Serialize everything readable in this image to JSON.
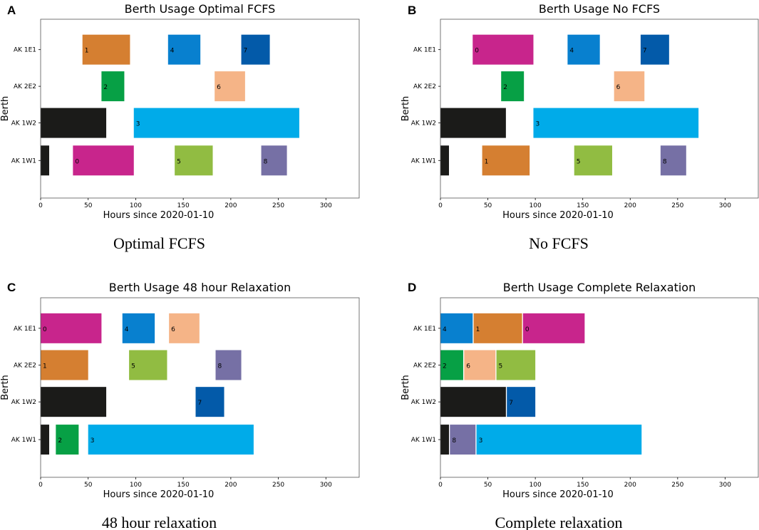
{
  "figure": {
    "xlabel": "Hours since 2020-01-10",
    "ylabel": "Berth"
  },
  "colors": {
    "0": "#c8258c",
    "1": "#d57f31",
    "2": "#07a045",
    "3": "#00abe9",
    "4": "#0880cf",
    "5": "#91bc42",
    "6": "#f5b487",
    "7": "#035aa9",
    "8": "#7670a5",
    "idle": "#1b1b19"
  },
  "chart_data": [
    {
      "type": "gantt",
      "letter": "A",
      "title": "Berth Usage Optimal FCFS",
      "caption": "Optimal FCFS",
      "xlabel": "Hours since 2020-01-10",
      "ylabel": "Berth",
      "xlim": [
        0,
        335
      ],
      "xticks": [
        "0",
        "50",
        "100",
        "150",
        "200",
        "250",
        "300"
      ],
      "berths": [
        "AK 1E1",
        "AK 2E2",
        "AK 1W2",
        "AK 1W1"
      ],
      "bars": [
        {
          "berth": "AK 1E1",
          "label": "1",
          "start": 44,
          "end": 94
        },
        {
          "berth": "AK 1E1",
          "label": "4",
          "start": 134,
          "end": 168
        },
        {
          "berth": "AK 1E1",
          "label": "7",
          "start": 211,
          "end": 241
        },
        {
          "berth": "AK 2E2",
          "label": "2",
          "start": 64,
          "end": 88
        },
        {
          "berth": "AK 2E2",
          "label": "6",
          "start": 183,
          "end": 215
        },
        {
          "berth": "AK 1W2",
          "label": "",
          "start": 0,
          "end": 69
        },
        {
          "berth": "AK 1W2",
          "label": "3",
          "start": 98,
          "end": 272
        },
        {
          "berth": "AK 1W1",
          "label": "",
          "start": 0,
          "end": 9
        },
        {
          "berth": "AK 1W1",
          "label": "0",
          "start": 34,
          "end": 98
        },
        {
          "berth": "AK 1W1",
          "label": "5",
          "start": 141,
          "end": 181
        },
        {
          "berth": "AK 1W1",
          "label": "8",
          "start": 232,
          "end": 259
        }
      ]
    },
    {
      "type": "gantt",
      "letter": "B",
      "title": "Berth Usage No FCFS",
      "caption": "No FCFS",
      "xlabel": "Hours since 2020-01-10",
      "ylabel": "Berth",
      "xlim": [
        0,
        335
      ],
      "xticks": [
        "0",
        "50",
        "100",
        "150",
        "200",
        "250",
        "300"
      ],
      "berths": [
        "AK 1E1",
        "AK 2E2",
        "AK 1W2",
        "AK 1W1"
      ],
      "bars": [
        {
          "berth": "AK 1E1",
          "label": "0",
          "start": 34,
          "end": 98
        },
        {
          "berth": "AK 1E1",
          "label": "4",
          "start": 134,
          "end": 168
        },
        {
          "berth": "AK 1E1",
          "label": "7",
          "start": 211,
          "end": 241
        },
        {
          "berth": "AK 2E2",
          "label": "2",
          "start": 64,
          "end": 88
        },
        {
          "berth": "AK 2E2",
          "label": "6",
          "start": 183,
          "end": 215
        },
        {
          "berth": "AK 1W2",
          "label": "",
          "start": 0,
          "end": 69
        },
        {
          "berth": "AK 1W2",
          "label": "3",
          "start": 98,
          "end": 272
        },
        {
          "berth": "AK 1W1",
          "label": "",
          "start": 0,
          "end": 9
        },
        {
          "berth": "AK 1W1",
          "label": "1",
          "start": 44,
          "end": 94
        },
        {
          "berth": "AK 1W1",
          "label": "5",
          "start": 141,
          "end": 181
        },
        {
          "berth": "AK 1W1",
          "label": "8",
          "start": 232,
          "end": 259
        }
      ]
    },
    {
      "type": "gantt",
      "letter": "C",
      "title": "Berth Usage 48 hour Relaxation",
      "caption": "48 hour relaxation",
      "xlabel": "Hours since 2020-01-10",
      "ylabel": "Berth",
      "xlim": [
        0,
        335
      ],
      "xticks": [
        "0",
        "50",
        "100",
        "150",
        "200",
        "250",
        "300"
      ],
      "berths": [
        "AK 1E1",
        "AK 2E2",
        "AK 1W2",
        "AK 1W1"
      ],
      "bars": [
        {
          "berth": "AK 1E1",
          "label": "0",
          "start": 0,
          "end": 64
        },
        {
          "berth": "AK 1E1",
          "label": "4",
          "start": 86,
          "end": 120
        },
        {
          "berth": "AK 1E1",
          "label": "6",
          "start": 135,
          "end": 167
        },
        {
          "berth": "AK 2E2",
          "label": "1",
          "start": 0,
          "end": 50
        },
        {
          "berth": "AK 2E2",
          "label": "5",
          "start": 93,
          "end": 133
        },
        {
          "berth": "AK 2E2",
          "label": "8",
          "start": 184,
          "end": 211
        },
        {
          "berth": "AK 1W2",
          "label": "",
          "start": 0,
          "end": 69
        },
        {
          "berth": "AK 1W2",
          "label": "7",
          "start": 163,
          "end": 193
        },
        {
          "berth": "AK 1W1",
          "label": "",
          "start": 0,
          "end": 9
        },
        {
          "berth": "AK 1W1",
          "label": "2",
          "start": 16,
          "end": 40
        },
        {
          "berth": "AK 1W1",
          "label": "3",
          "start": 50,
          "end": 224
        }
      ]
    },
    {
      "type": "gantt",
      "letter": "D",
      "title": "Berth Usage Complete Relaxation",
      "caption": "Complete relaxation",
      "xlabel": "Hours since 2020-01-10",
      "ylabel": "Berth",
      "xlim": [
        0,
        335
      ],
      "xticks": [
        "0",
        "50",
        "100",
        "150",
        "200",
        "250",
        "300"
      ],
      "berths": [
        "AK 1E1",
        "AK 2E2",
        "AK 1W2",
        "AK 1W1"
      ],
      "bars": [
        {
          "berth": "AK 1E1",
          "label": "4",
          "start": 0,
          "end": 34
        },
        {
          "berth": "AK 1E1",
          "label": "1",
          "start": 35,
          "end": 86
        },
        {
          "berth": "AK 1E1",
          "label": "0",
          "start": 87,
          "end": 152
        },
        {
          "berth": "AK 2E2",
          "label": "2",
          "start": 0,
          "end": 24
        },
        {
          "berth": "AK 2E2",
          "label": "6",
          "start": 25,
          "end": 58
        },
        {
          "berth": "AK 2E2",
          "label": "5",
          "start": 59,
          "end": 100
        },
        {
          "berth": "AK 1W2",
          "label": "",
          "start": 0,
          "end": 69
        },
        {
          "berth": "AK 1W2",
          "label": "7",
          "start": 70,
          "end": 100
        },
        {
          "berth": "AK 1W1",
          "label": "",
          "start": 0,
          "end": 9
        },
        {
          "berth": "AK 1W1",
          "label": "8",
          "start": 10,
          "end": 37
        },
        {
          "berth": "AK 1W1",
          "label": "3",
          "start": 38,
          "end": 212
        }
      ]
    }
  ]
}
